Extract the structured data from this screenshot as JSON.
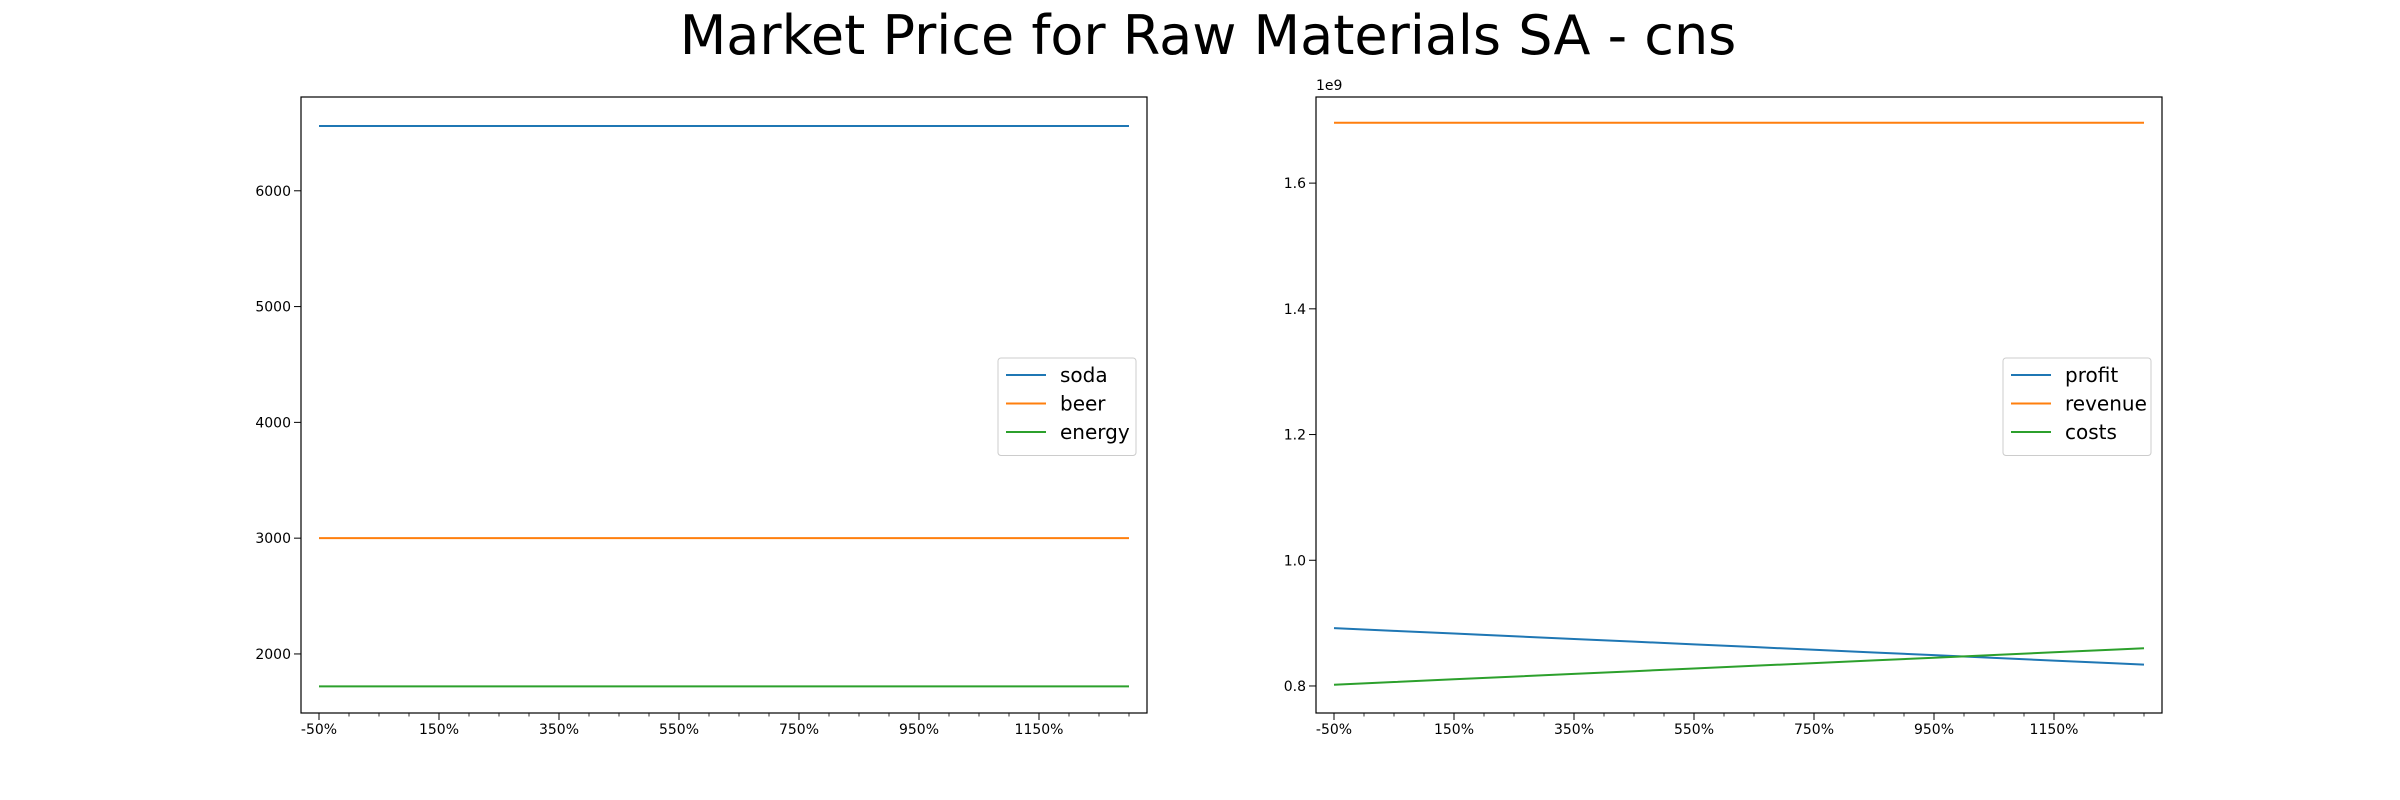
{
  "title": "Market Price for Raw Materials SA - cns",
  "chart_data": [
    {
      "type": "line",
      "x": [
        -50,
        50,
        150,
        250,
        350,
        450,
        550,
        650,
        750,
        850,
        950,
        1050,
        1150,
        1250,
        1300
      ],
      "xlim": [
        -80,
        1330
      ],
      "xticks": [
        -50,
        150,
        350,
        550,
        750,
        950,
        1150
      ],
      "xtick_labels": [
        "-50%",
        "150%",
        "350%",
        "550%",
        "750%",
        "950%",
        "1150%"
      ],
      "x_minor_step": 50,
      "ylim": [
        1490,
        6810
      ],
      "yticks": [
        2000,
        3000,
        4000,
        5000,
        6000
      ],
      "ytick_labels": [
        "2000",
        "3000",
        "4000",
        "5000",
        "6000"
      ],
      "series": [
        {
          "name": "soda",
          "color": "#1f77b4",
          "values": [
            6560,
            6560,
            6560,
            6560,
            6560,
            6560,
            6560,
            6560,
            6560,
            6560,
            6560,
            6560,
            6560,
            6560,
            6560
          ]
        },
        {
          "name": "beer",
          "color": "#ff7f0e",
          "values": [
            3000,
            3000,
            3000,
            3000,
            3000,
            3000,
            3000,
            3000,
            3000,
            3000,
            3000,
            3000,
            3000,
            3000,
            3000
          ]
        },
        {
          "name": "energy",
          "color": "#2ca02c",
          "values": [
            1720,
            1720,
            1720,
            1720,
            1720,
            1720,
            1720,
            1720,
            1720,
            1720,
            1720,
            1720,
            1720,
            1720,
            1720
          ]
        }
      ],
      "legend_loc": "center right"
    },
    {
      "type": "line",
      "x": [
        -50,
        50,
        150,
        250,
        350,
        450,
        550,
        650,
        750,
        850,
        950,
        1050,
        1150,
        1250,
        1300
      ],
      "xlim": [
        -80,
        1330
      ],
      "xticks": [
        -50,
        150,
        350,
        550,
        750,
        950,
        1150
      ],
      "xtick_labels": [
        "-50%",
        "150%",
        "350%",
        "550%",
        "750%",
        "950%",
        "1150%"
      ],
      "x_minor_step": 50,
      "y_offset_label": "1e9",
      "ylim": [
        0.757,
        1.737
      ],
      "yticks": [
        0.8,
        1.0,
        1.2,
        1.4,
        1.6
      ],
      "ytick_labels": [
        "0.8",
        "1.0",
        "1.2",
        "1.4",
        "1.6"
      ],
      "series": [
        {
          "name": "profit",
          "color": "#1f77b4",
          "values": [
            0.892,
            0.8877,
            0.8834,
            0.8791,
            0.8748,
            0.8705,
            0.8662,
            0.8619,
            0.8576,
            0.8533,
            0.849,
            0.8447,
            0.8404,
            0.8361,
            0.834
          ]
        },
        {
          "name": "revenue",
          "color": "#ff7f0e",
          "values": [
            1.696,
            1.696,
            1.696,
            1.696,
            1.696,
            1.696,
            1.696,
            1.696,
            1.696,
            1.696,
            1.696,
            1.696,
            1.696,
            1.696,
            1.696
          ]
        },
        {
          "name": "costs",
          "color": "#2ca02c",
          "values": [
            0.802,
            0.8063,
            0.8106,
            0.8149,
            0.8192,
            0.8235,
            0.8278,
            0.8321,
            0.8364,
            0.8407,
            0.845,
            0.8493,
            0.8536,
            0.8579,
            0.86
          ]
        }
      ],
      "legend_loc": "center right"
    }
  ]
}
